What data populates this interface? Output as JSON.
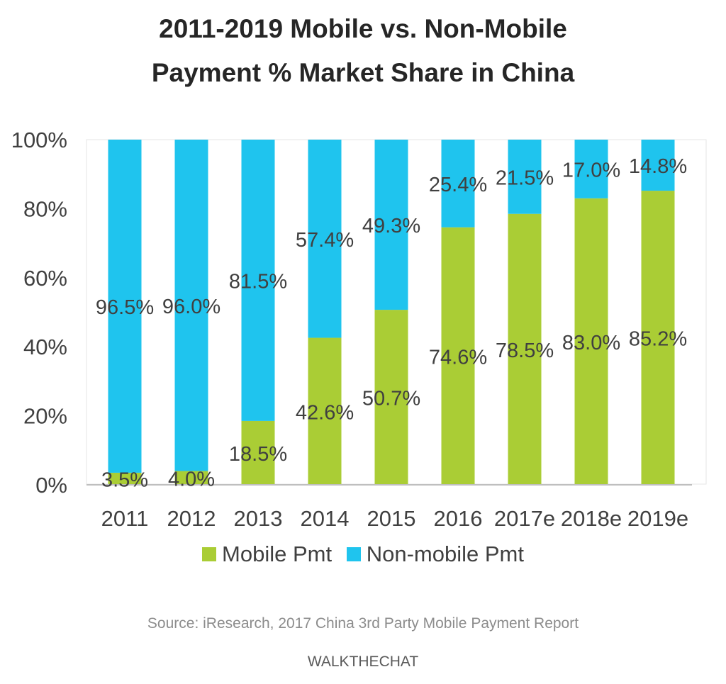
{
  "title_line1": "2011-2019 Mobile vs. Non-Mobile",
  "title_line2": "Payment % Market Share in China",
  "source": "Source: iResearch, 2017 China 3rd Party Mobile Payment Report",
  "brand": "WALKTHECHAT",
  "colors": {
    "mobile": "#aacd35",
    "non_mobile": "#1fc4ee",
    "axis_text": "#404040",
    "data_label": "#404040"
  },
  "chart_data": {
    "type": "bar",
    "stacked": true,
    "categories": [
      "2011",
      "2012",
      "2013",
      "2014",
      "2015",
      "2016",
      "2017e",
      "2018e",
      "2019e"
    ],
    "series": [
      {
        "name": "Mobile Pmt",
        "values": [
          3.5,
          4.0,
          18.5,
          42.6,
          50.7,
          74.6,
          78.5,
          83.0,
          85.2
        ],
        "labels": [
          "3.5%",
          "4.0%",
          "18.5%",
          "42.6%",
          "50.7%",
          "74.6%",
          "78.5%",
          "83.0%",
          "85.2%"
        ]
      },
      {
        "name": "Non-mobile Pmt",
        "values": [
          96.5,
          96.0,
          81.5,
          57.4,
          49.3,
          25.4,
          21.5,
          17.0,
          14.8
        ],
        "labels": [
          "96.5%",
          "96.0%",
          "81.5%",
          "57.4%",
          "49.3%",
          "25.4%",
          "21.5%",
          "17.0%",
          "14.8%"
        ]
      }
    ],
    "ylim": [
      0,
      100
    ],
    "yticks": [
      "0%",
      "20%",
      "40%",
      "60%",
      "80%",
      "100%"
    ],
    "ytick_values": [
      0,
      20,
      40,
      60,
      80,
      100
    ],
    "legend_position": "bottom",
    "grid": false
  }
}
